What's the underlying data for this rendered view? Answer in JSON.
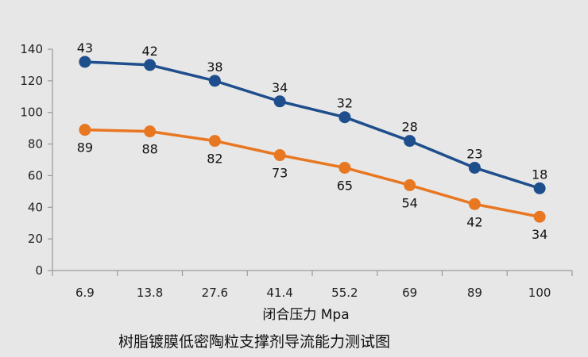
{
  "chart_data": {
    "type": "line",
    "title": "树脂镀膜低密陶粒支撑剂导流能力测试图",
    "xlabel": "闭合压力 Mpa",
    "ylabel": "",
    "categories": [
      "6.9",
      "13.8",
      "27.6",
      "41.4",
      "55.2",
      "69",
      "89",
      "100"
    ],
    "ylim": [
      0,
      140
    ],
    "yticks": [
      "0",
      "20",
      "40",
      "60",
      "80",
      "100",
      "120",
      "140"
    ],
    "grid": false,
    "legend": "none",
    "series": [
      {
        "color": "#1f4e8c",
        "values": [
          132,
          130,
          120,
          107,
          97,
          82,
          65,
          52
        ],
        "labels": [
          "43",
          "42",
          "38",
          "34",
          "32",
          "28",
          "23",
          "18"
        ],
        "label_position": "above"
      },
      {
        "color": "#e87722",
        "values": [
          89,
          88,
          82,
          73,
          65,
          54,
          42,
          34
        ],
        "labels": [
          "89",
          "88",
          "82",
          "73",
          "65",
          "54",
          "42",
          "34"
        ],
        "label_position": "below"
      }
    ]
  }
}
